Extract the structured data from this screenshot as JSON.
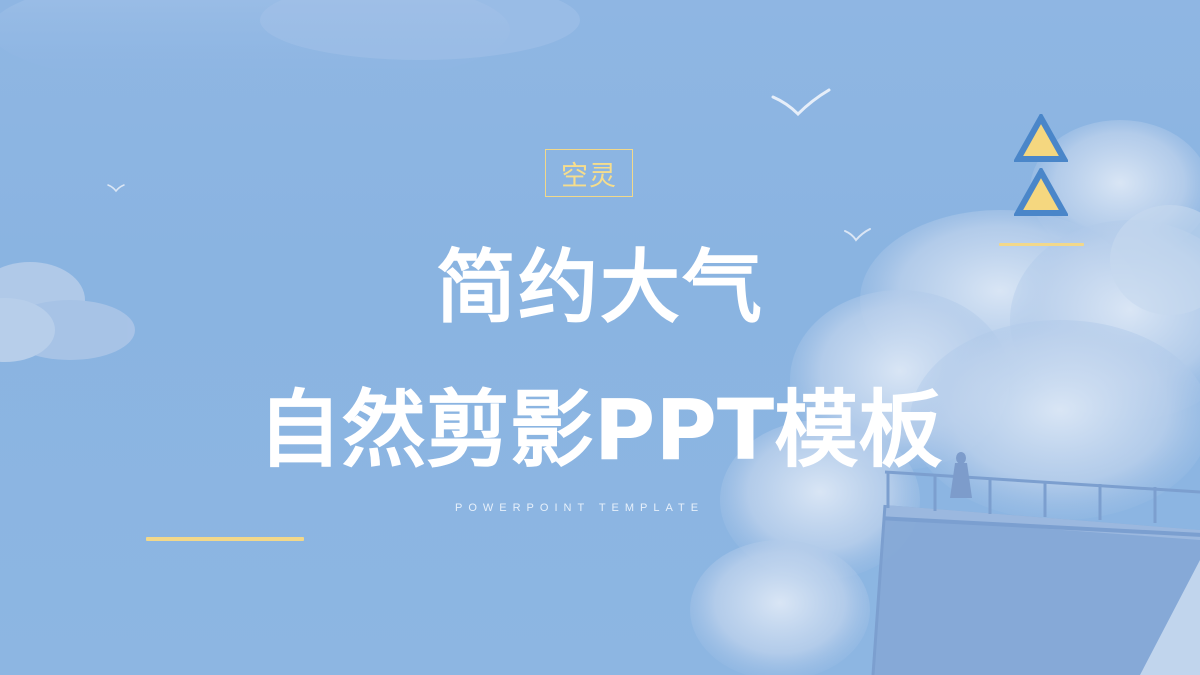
{
  "slide": {
    "tag": "空灵",
    "title_line1": "简约大气",
    "title_line2": "自然剪影PPT模板",
    "subtitle": "POWERPOINT TEMPLATE"
  },
  "colors": {
    "background": "#8ab4e1",
    "accent_yellow": "#f2d88a",
    "triangle_border": "#4a86c9",
    "title_text": "#ffffff"
  },
  "icons": {
    "decor": [
      "triangle-icon",
      "triangle-icon",
      "bird-icon",
      "cloud",
      "railing-silhouette"
    ]
  }
}
